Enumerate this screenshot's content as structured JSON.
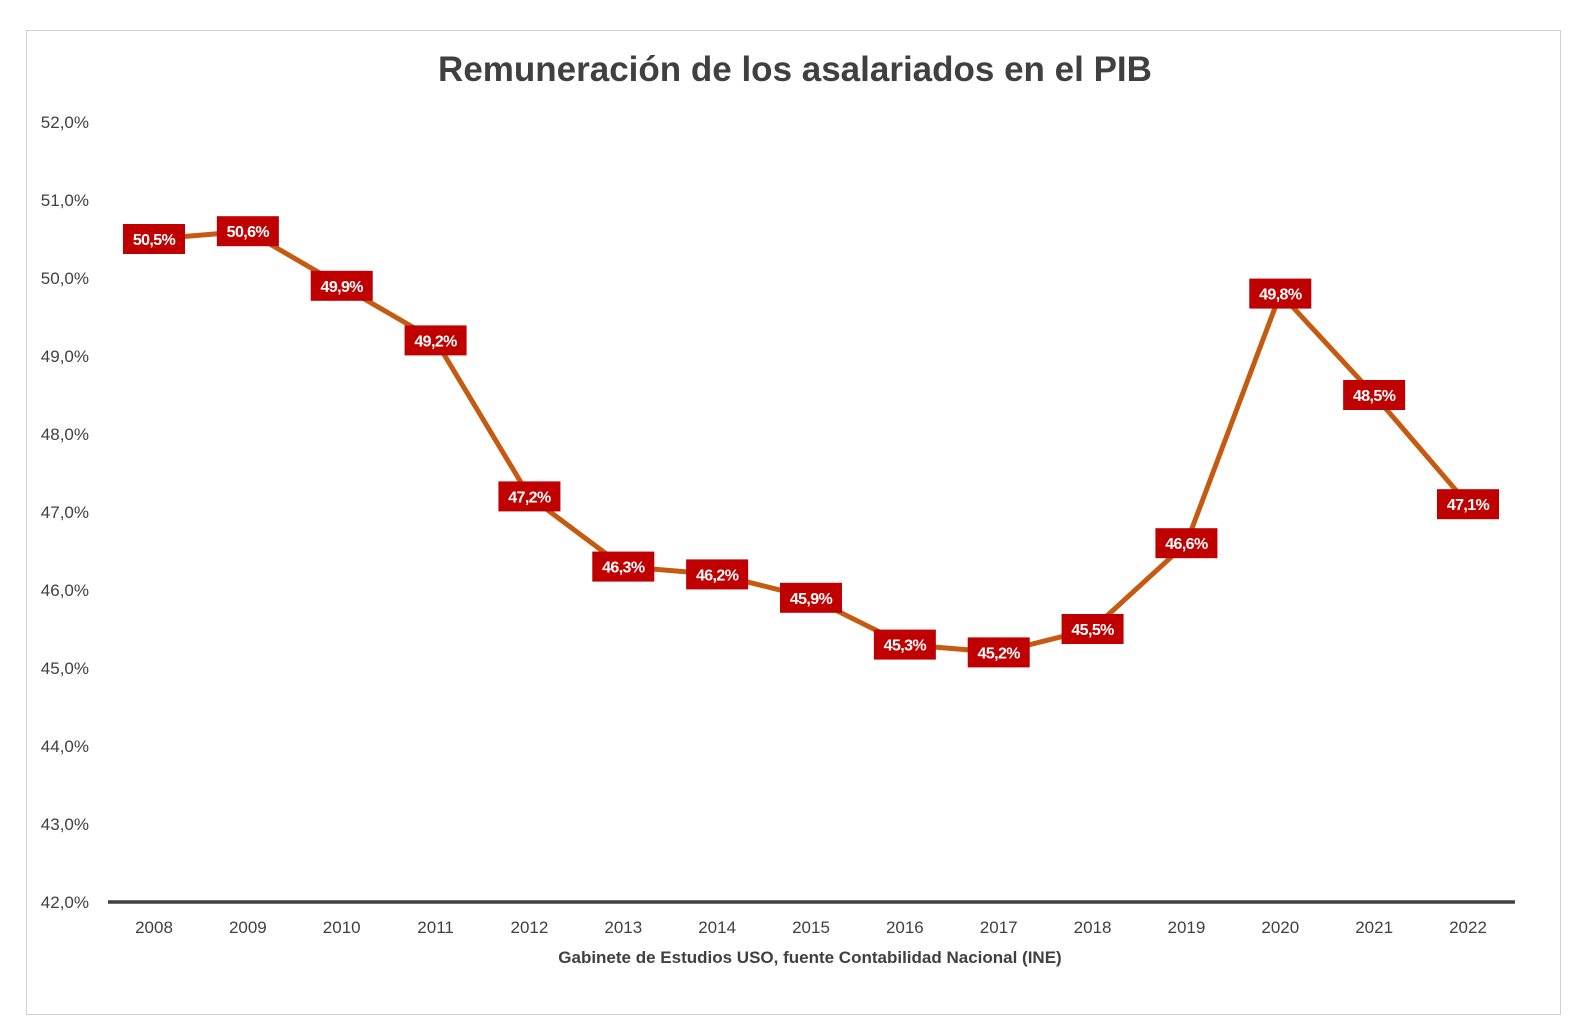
{
  "colors": {
    "line": "#C55A11",
    "marker": "#5B9BD5",
    "label_bg": "#C00000",
    "label_text": "#FFFFFF",
    "axis": "#404040",
    "text": "#404040"
  },
  "chart_data": {
    "type": "line",
    "title": "Remuneración de los asalariados en el PIB",
    "xlabel": "Gabinete de Estudios USO, fuente Contabilidad Nacional (INE)",
    "ylabel": "",
    "categories": [
      "2008",
      "2009",
      "2010",
      "2011",
      "2012",
      "2013",
      "2014",
      "2015",
      "2016",
      "2017",
      "2018",
      "2019",
      "2020",
      "2021",
      "2022"
    ],
    "series": [
      {
        "name": "Remuneración de los asalariados en el PIB",
        "values": [
          50.5,
          50.6,
          49.9,
          49.2,
          47.2,
          46.3,
          46.2,
          45.9,
          45.3,
          45.2,
          45.5,
          46.6,
          49.8,
          48.5,
          47.1
        ],
        "labels": [
          "50,5%",
          "50,6%",
          "49,9%",
          "49,2%",
          "47,2%",
          "46,3%",
          "46,2%",
          "45,9%",
          "45,3%",
          "45,2%",
          "45,5%",
          "46,6%",
          "49,8%",
          "48,5%",
          "47,1%"
        ]
      }
    ],
    "ylim": [
      42,
      52
    ],
    "yticks": [
      42,
      43,
      44,
      45,
      46,
      47,
      48,
      49,
      50,
      51,
      52
    ],
    "ytick_labels": [
      "42,0%",
      "43,0%",
      "44,0%",
      "45,0%",
      "46,0%",
      "47,0%",
      "48,0%",
      "49,0%",
      "50,0%",
      "51,0%",
      "52,0%"
    ],
    "grid": false,
    "legend": "none"
  }
}
